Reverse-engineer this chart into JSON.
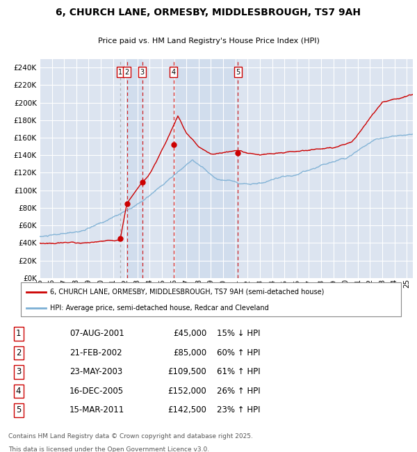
{
  "title": "6, CHURCH LANE, ORMESBY, MIDDLESBROUGH, TS7 9AH",
  "subtitle": "Price paid vs. HM Land Registry's House Price Index (HPI)",
  "legend_line1": "6, CHURCH LANE, ORMESBY, MIDDLESBROUGH, TS7 9AH (semi-detached house)",
  "legend_line2": "HPI: Average price, semi-detached house, Redcar and Cleveland",
  "footer1": "Contains HM Land Registry data © Crown copyright and database right 2025.",
  "footer2": "This data is licensed under the Open Government Licence v3.0.",
  "sales": [
    {
      "num": 1,
      "date": "07-AUG-2001",
      "price": 45000,
      "pct": "15%",
      "dir": "↓"
    },
    {
      "num": 2,
      "date": "21-FEB-2002",
      "price": 85000,
      "pct": "60%",
      "dir": "↑"
    },
    {
      "num": 3,
      "date": "23-MAY-2003",
      "price": 109500,
      "pct": "61%",
      "dir": "↑"
    },
    {
      "num": 4,
      "date": "16-DEC-2005",
      "price": 152000,
      "pct": "26%",
      "dir": "↑"
    },
    {
      "num": 5,
      "date": "15-MAR-2011",
      "price": 142500,
      "pct": "23%",
      "dir": "↑"
    }
  ],
  "sale_dates_x": [
    2001.6,
    2002.13,
    2003.39,
    2005.96,
    2011.21
  ],
  "sale_prices_y": [
    45000,
    85000,
    109500,
    152000,
    142500
  ],
  "plot_bg_color": "#dce4f0",
  "grid_color": "#ffffff",
  "red_line_color": "#cc0000",
  "blue_line_color": "#7bafd4",
  "marker_color": "#cc0000",
  "ylim": [
    0,
    250000
  ],
  "yticks": [
    0,
    20000,
    40000,
    60000,
    80000,
    100000,
    120000,
    140000,
    160000,
    180000,
    200000,
    220000,
    240000
  ],
  "xlim": [
    1995,
    2025.5
  ]
}
